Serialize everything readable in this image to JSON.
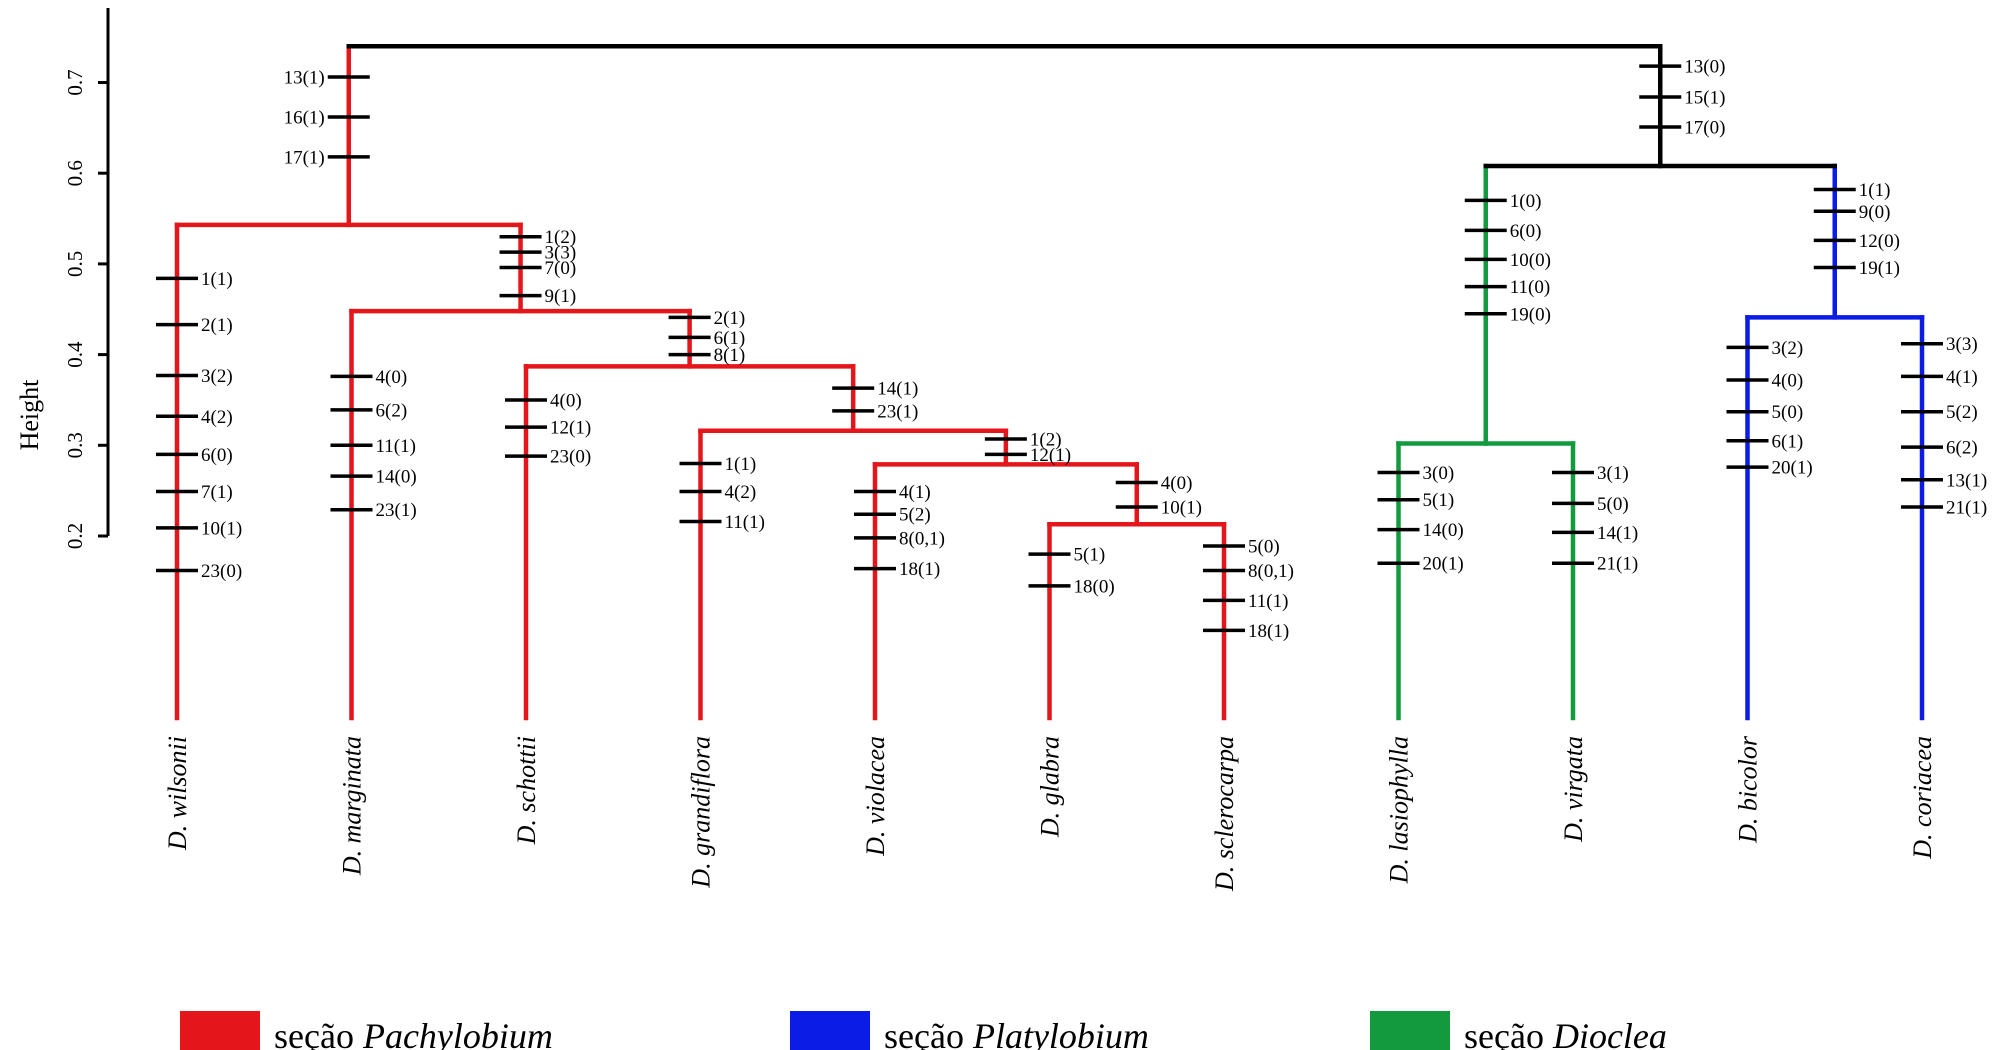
{
  "axis": {
    "title": "Height",
    "ticks": [
      {
        "value": 0.2,
        "label": "0.2"
      },
      {
        "value": 0.3,
        "label": "0.3"
      },
      {
        "value": 0.4,
        "label": "0.4"
      },
      {
        "value": 0.5,
        "label": "0.5"
      },
      {
        "value": 0.6,
        "label": "0.6"
      },
      {
        "value": 0.7,
        "label": "0.7"
      }
    ]
  },
  "colors": {
    "Pachylobium": "#e4161b",
    "Platylobium": "#0a1ce6",
    "Dioclea": "#139a3e",
    "root": "#000000"
  },
  "taxa": [
    {
      "id": "wilsonii",
      "name": "D. wilsonii",
      "section": "Pachylobium"
    },
    {
      "id": "marginata",
      "name": "D. marginata",
      "section": "Pachylobium"
    },
    {
      "id": "schottii",
      "name": "D. schottii",
      "section": "Pachylobium"
    },
    {
      "id": "grandiflora",
      "name": "D. grandiflora",
      "section": "Pachylobium"
    },
    {
      "id": "violacea",
      "name": "D. violacea",
      "section": "Pachylobium"
    },
    {
      "id": "glabra",
      "name": "D. glabra",
      "section": "Pachylobium"
    },
    {
      "id": "sclerocarpa",
      "name": "D. sclerocarpa",
      "section": "Pachylobium"
    },
    {
      "id": "lasiophylla",
      "name": "D. lasiophylla",
      "section": "Dioclea"
    },
    {
      "id": "virgata",
      "name": "D. virgata",
      "section": "Dioclea"
    },
    {
      "id": "bicolor",
      "name": "D. bicolor",
      "section": "Platylobium"
    },
    {
      "id": "coriacea",
      "name": "D. coriacea",
      "section": "Platylobium"
    }
  ],
  "clades": [
    {
      "id": "root",
      "height": 0.74,
      "section": "root",
      "children": [
        "pachylobium_clade",
        "dioclea_platylobium"
      ]
    },
    {
      "id": "pachylobium_clade",
      "height": 0.543,
      "section": "Pachylobium",
      "children": [
        "wilsonii",
        "c_marginata_group"
      ]
    },
    {
      "id": "c_marginata_group",
      "height": 0.448,
      "section": "Pachylobium",
      "children": [
        "marginata",
        "c_schottii_group"
      ]
    },
    {
      "id": "c_schottii_group",
      "height": 0.387,
      "section": "Pachylobium",
      "children": [
        "schottii",
        "c_grandiflora_group"
      ]
    },
    {
      "id": "c_grandiflora_group",
      "height": 0.316,
      "section": "Pachylobium",
      "children": [
        "grandiflora",
        "c_violacea_group"
      ]
    },
    {
      "id": "c_violacea_group",
      "height": 0.279,
      "section": "Pachylobium",
      "children": [
        "violacea",
        "c_glabra_group"
      ]
    },
    {
      "id": "c_glabra_group",
      "height": 0.213,
      "section": "Pachylobium",
      "children": [
        "glabra",
        "sclerocarpa"
      ]
    },
    {
      "id": "dioclea_platylobium",
      "height": 0.608,
      "section": "root",
      "children": [
        "dioclea_clade",
        "platylobium_clade"
      ]
    },
    {
      "id": "dioclea_clade",
      "height": 0.302,
      "section": "Dioclea",
      "children": [
        "lasiophylla",
        "virgata"
      ]
    },
    {
      "id": "platylobium_clade",
      "height": 0.441,
      "section": "Platylobium",
      "children": [
        "bicolor",
        "coriacea"
      ]
    }
  ],
  "characters": [
    {
      "node": "pachylobium_clade",
      "side": "left",
      "heights": [
        0.706,
        0.662,
        0.618
      ],
      "labels": [
        "13(1)",
        "16(1)",
        "17(1)"
      ]
    },
    {
      "node": "dioclea_platylobium",
      "side": "right",
      "heights": [
        0.718,
        0.684,
        0.651
      ],
      "labels": [
        "13(0)",
        "15(1)",
        "17(0)"
      ]
    },
    {
      "node": "wilsonii",
      "side": "right",
      "heights": [
        0.484,
        0.433,
        0.377,
        0.332,
        0.29,
        0.249,
        0.209,
        0.162
      ],
      "labels": [
        "1(1)",
        "2(1)",
        "3(2)",
        "4(2)",
        "6(0)",
        "7(1)",
        "10(1)",
        "23(0)"
      ]
    },
    {
      "node": "c_marginata_group",
      "side": "right",
      "heights": [
        0.53,
        0.513,
        0.496,
        0.465
      ],
      "labels": [
        "1(2)",
        "3(3)",
        "7(0)",
        "9(1)"
      ]
    },
    {
      "node": "marginata",
      "side": "right",
      "heights": [
        0.376,
        0.339,
        0.3,
        0.266,
        0.229
      ],
      "labels": [
        "4(0)",
        "6(2)",
        "11(1)",
        "14(0)",
        "23(1)"
      ]
    },
    {
      "node": "c_schottii_group",
      "side": "right",
      "heights": [
        0.441,
        0.419,
        0.4
      ],
      "labels": [
        "2(1)",
        "6(1)",
        "8(1)"
      ]
    },
    {
      "node": "schottii",
      "side": "right",
      "heights": [
        0.35,
        0.32,
        0.288
      ],
      "labels": [
        "4(0)",
        "12(1)",
        "23(0)"
      ]
    },
    {
      "node": "c_grandiflora_group",
      "side": "right",
      "heights": [
        0.363,
        0.338
      ],
      "labels": [
        "14(1)",
        "23(1)"
      ]
    },
    {
      "node": "grandiflora",
      "side": "right",
      "heights": [
        0.28,
        0.249,
        0.216
      ],
      "labels": [
        "1(1)",
        "4(2)",
        "11(1)"
      ]
    },
    {
      "node": "c_violacea_group",
      "side": "right",
      "heights": [
        0.307,
        0.29
      ],
      "labels": [
        "1(2)",
        "12(1)"
      ]
    },
    {
      "node": "violacea",
      "side": "right",
      "heights": [
        0.249,
        0.224,
        0.198,
        0.164
      ],
      "labels": [
        "4(1)",
        "5(2)",
        "8(0,1)",
        "18(1)"
      ]
    },
    {
      "node": "c_glabra_group",
      "side": "right",
      "heights": [
        0.259,
        0.232
      ],
      "labels": [
        "4(0)",
        "10(1)"
      ]
    },
    {
      "node": "glabra",
      "side": "right",
      "heights": [
        0.18,
        0.145
      ],
      "labels": [
        "5(1)",
        "18(0)"
      ]
    },
    {
      "node": "sclerocarpa",
      "side": "right",
      "heights": [
        0.189,
        0.162,
        0.129,
        0.096
      ],
      "labels": [
        "5(0)",
        "8(0,1)",
        "11(1)",
        "18(1)"
      ]
    },
    {
      "node": "dioclea_clade",
      "side": "right",
      "heights": [
        0.57,
        0.537,
        0.505,
        0.475,
        0.445
      ],
      "labels": [
        "1(0)",
        "6(0)",
        "10(0)",
        "11(0)",
        "19(0)"
      ]
    },
    {
      "node": "platylobium_clade",
      "side": "right",
      "heights": [
        0.582,
        0.558,
        0.526,
        0.496
      ],
      "labels": [
        "1(1)",
        "9(0)",
        "12(0)",
        "19(1)"
      ]
    },
    {
      "node": "lasiophylla",
      "side": "right",
      "heights": [
        0.27,
        0.24,
        0.207,
        0.17
      ],
      "labels": [
        "3(0)",
        "5(1)",
        "14(0)",
        "20(1)"
      ]
    },
    {
      "node": "virgata",
      "side": "right",
      "heights": [
        0.27,
        0.236,
        0.204,
        0.17
      ],
      "labels": [
        "3(1)",
        "5(0)",
        "14(1)",
        "21(1)"
      ]
    },
    {
      "node": "bicolor",
      "side": "right",
      "heights": [
        0.408,
        0.372,
        0.337,
        0.305,
        0.276
      ],
      "labels": [
        "3(2)",
        "4(0)",
        "5(0)",
        "6(1)",
        "20(1)"
      ]
    },
    {
      "node": "coriacea",
      "side": "right",
      "heights": [
        0.412,
        0.376,
        0.337,
        0.298,
        0.262,
        0.232
      ],
      "labels": [
        "3(3)",
        "4(1)",
        "5(2)",
        "6(2)",
        "13(1)",
        "21(1)"
      ]
    }
  ],
  "legend": [
    {
      "section": "Pachylobium",
      "prefix": "seção ",
      "name": "Pachylobium"
    },
    {
      "section": "Platylobium",
      "prefix": "seção ",
      "name": "Platylobium"
    },
    {
      "section": "Dioclea",
      "prefix": "seção ",
      "name": "Dioclea"
    }
  ]
}
